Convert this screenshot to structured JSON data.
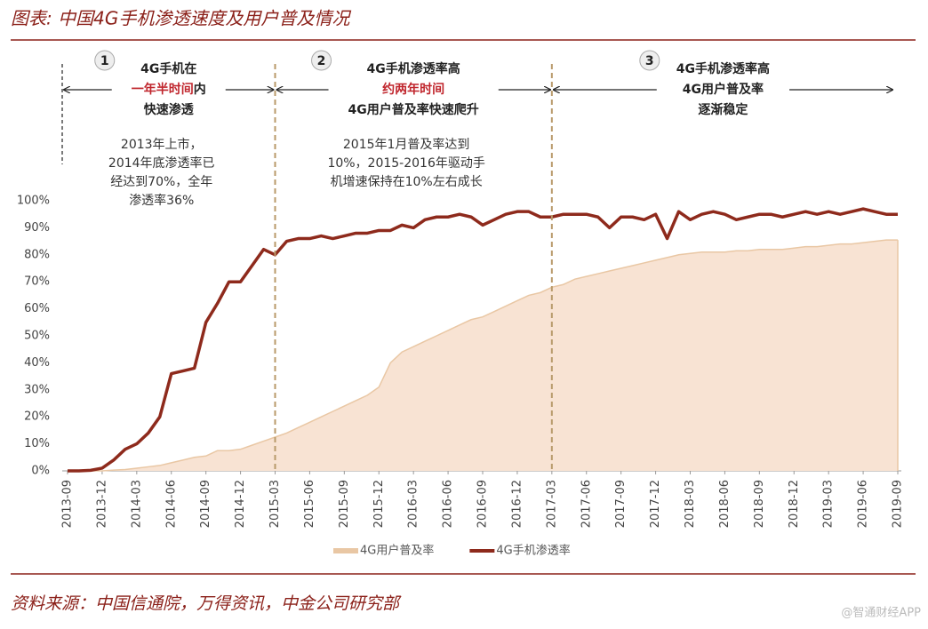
{
  "chart_data": {
    "type": "line",
    "title": "图表: 中国4G手机渗透速度及用户普及情况",
    "source": "资料来源：中国信通院，万得资讯，中金公司研究部",
    "watermark": "@智通财经APP",
    "categories": [
      "2013-09",
      null,
      null,
      "2013-12",
      null,
      null,
      "2014-03",
      null,
      null,
      "2014-06",
      null,
      null,
      "2014-09",
      null,
      null,
      "2014-12",
      null,
      null,
      "2015-03",
      null,
      null,
      "2015-06",
      null,
      null,
      "2015-09",
      null,
      null,
      "2015-12",
      null,
      null,
      "2016-03",
      null,
      null,
      "2016-06",
      null,
      null,
      "2016-09",
      null,
      null,
      "2016-12",
      null,
      null,
      "2017-03",
      null,
      null,
      "2017-06",
      null,
      null,
      "2017-09",
      null,
      null,
      "2017-12",
      null,
      null,
      "2018-03",
      null,
      null,
      "2018-06",
      null,
      null,
      "2018-09",
      null,
      null,
      "2018-12",
      null,
      null,
      "2019-03",
      null,
      null,
      "2019-06",
      null,
      null,
      "2019-09"
    ],
    "ylim": [
      0,
      100
    ],
    "yticks": [
      {
        "value": 0,
        "label": "0%"
      },
      {
        "value": 10,
        "label": "10%"
      },
      {
        "value": 20,
        "label": "20%"
      },
      {
        "value": 30,
        "label": "30%"
      },
      {
        "value": 40,
        "label": "40%"
      },
      {
        "value": 50,
        "label": "50%"
      },
      {
        "value": 60,
        "label": "60%"
      },
      {
        "value": 70,
        "label": "70%"
      },
      {
        "value": 80,
        "label": "80%"
      },
      {
        "value": 90,
        "label": "90%"
      },
      {
        "value": 100,
        "label": "100%"
      }
    ],
    "series": [
      {
        "name": "4G用户普及率",
        "type": "area",
        "color": "#e9c7a4",
        "fill": "#f8e3d3",
        "values": [
          0,
          0,
          0,
          0,
          0.3,
          0.5,
          1,
          1.5,
          2,
          3,
          4,
          5,
          5.5,
          7.5,
          7.5,
          8,
          9.5,
          11,
          12.5,
          14,
          16,
          18,
          20,
          22,
          24,
          26,
          28,
          31,
          40,
          44,
          46,
          48,
          50,
          52,
          54,
          56,
          57,
          59,
          61,
          63,
          65,
          66,
          68,
          69,
          71,
          72,
          73,
          74,
          75,
          76,
          77,
          78,
          79,
          80,
          80.5,
          81,
          81,
          81,
          81.5,
          81.5,
          82,
          82,
          82,
          82.5,
          83,
          83,
          83.5,
          84,
          84,
          84.5,
          85,
          85.5,
          85.5
        ]
      },
      {
        "name": "4G手机渗透率",
        "type": "line",
        "color": "#8e2a1c",
        "values": [
          0,
          0,
          0.2,
          1,
          4,
          8,
          10,
          14,
          20,
          36,
          37,
          38,
          55,
          62,
          70,
          70,
          76,
          82,
          80,
          85,
          86,
          86,
          87,
          86,
          87,
          88,
          88,
          89,
          89,
          91,
          90,
          93,
          94,
          94,
          95,
          94,
          91,
          93,
          95,
          96,
          96,
          94,
          94,
          95,
          95,
          95,
          94,
          90,
          94,
          94,
          93,
          95,
          86,
          96,
          93,
          95,
          96,
          95,
          93,
          94,
          95,
          95,
          94,
          95,
          96,
          95,
          96,
          95,
          96,
          97,
          96,
          95,
          95
        ]
      }
    ],
    "dividers": [
      "2015-03",
      "2017-03"
    ],
    "phases": [
      {
        "number": "1",
        "heading": [
          [
            {
              "text": "4G手机在"
            }
          ],
          [
            {
              "text": "一年半时间",
              "color": "#c0262d"
            },
            {
              "text": "内"
            }
          ],
          [
            {
              "text": "快速渗透"
            }
          ]
        ],
        "description": [
          "2013年上市，",
          "2014年底渗透率已",
          "经达到70%，全年",
          "渗透率36%"
        ]
      },
      {
        "number": "2",
        "heading": [
          [
            {
              "text": "4G手机渗透率高"
            }
          ],
          [
            {
              "text": "约两年时间",
              "color": "#c0262d"
            }
          ],
          [
            {
              "text": "4G用户普及率快速爬升"
            }
          ]
        ],
        "description": [
          "2015年1月普及率达到",
          "10%，2015-2016年驱动手",
          "机增速保持在10%左右成长"
        ]
      },
      {
        "number": "3",
        "heading": [
          [
            {
              "text": "4G手机渗透率高"
            }
          ],
          [
            {
              "text": "4G用户普及率"
            }
          ],
          [
            {
              "text": "逐渐稳定"
            }
          ]
        ],
        "description": []
      }
    ]
  }
}
